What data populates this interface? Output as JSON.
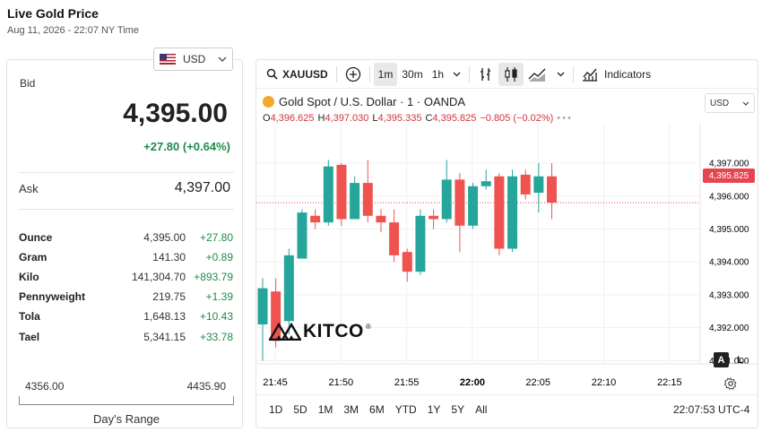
{
  "page": {
    "title": "Live Gold Price",
    "timestamp": "Aug 11, 2026 - 22:07 NY Time"
  },
  "currency": {
    "selected": "USD",
    "flag_icon": "us-flag-icon"
  },
  "bid": {
    "label": "Bid",
    "value": "4,395.00",
    "change": "+27.80 (+0.64%)"
  },
  "ask": {
    "label": "Ask",
    "value": "4,397.00"
  },
  "units": [
    {
      "name": "Ounce",
      "price": "4,395.00",
      "change": "+27.80"
    },
    {
      "name": "Gram",
      "price": "141.30",
      "change": "+0.89"
    },
    {
      "name": "Kilo",
      "price": "141,304.70",
      "change": "+893.79"
    },
    {
      "name": "Pennyweight",
      "price": "219.75",
      "change": "+1.39"
    },
    {
      "name": "Tola",
      "price": "1,648.13",
      "change": "+10.43"
    },
    {
      "name": "Tael",
      "price": "5,341.15",
      "change": "+33.78"
    }
  ],
  "day_range": {
    "low": "4356.00",
    "high": "4435.90",
    "label": "Day's Range"
  },
  "toolbar": {
    "symbol": "XAUUSD",
    "intervals": [
      "1m",
      "30m",
      "1h"
    ],
    "active_interval": "1m",
    "indicators_label": "Indicators"
  },
  "chart_header": {
    "title": "Gold Spot / U.S. Dollar · 1 · OANDA",
    "o_label": "O",
    "o_value": "4,396.625",
    "h_label": "H",
    "h_value": "4,397.030",
    "l_label": "L",
    "l_value": "4,395.335",
    "c_label": "C",
    "c_value": "4,395.825",
    "change": "−0.805 (−0.02%)"
  },
  "price_scale": {
    "currency": "USD",
    "last_price": "4,395.825"
  },
  "logo": {
    "text": "KITCO",
    "mark": "®"
  },
  "scale_toggle": {
    "log": "L",
    "auto": "A"
  },
  "range_buttons": [
    "1D",
    "5D",
    "1M",
    "3M",
    "6M",
    "YTD",
    "1Y",
    "5Y",
    "All"
  ],
  "clock": "22:07:53 UTC-4",
  "chart_data": {
    "type": "candlestick",
    "y_ticks": [
      "4,397.000",
      "4,396.000",
      "4,395.000",
      "4,394.000",
      "4,393.000",
      "4,392.000",
      "4,391.000"
    ],
    "x_ticks": [
      "21:45",
      "21:50",
      "21:55",
      "22:00",
      "22:05",
      "22:10",
      "22:15"
    ],
    "ylim": [
      4390.9,
      4398.2
    ],
    "colors": {
      "up": "#26a69a",
      "down": "#ef5350"
    },
    "candles": [
      {
        "o": 4392.1,
        "c": 4393.2,
        "h": 4393.5,
        "l": 4391.0
      },
      {
        "o": 4393.1,
        "c": 4391.6,
        "h": 4393.5,
        "l": 4391.4
      },
      {
        "o": 4392.2,
        "c": 4394.2,
        "h": 4394.4,
        "l": 4391.8
      },
      {
        "o": 4394.1,
        "c": 4395.5,
        "h": 4395.6,
        "l": 4394.1
      },
      {
        "o": 4395.4,
        "c": 4395.2,
        "h": 4395.6,
        "l": 4395.0
      },
      {
        "o": 4395.2,
        "c": 4396.9,
        "h": 4397.1,
        "l": 4395.1
      },
      {
        "o": 4396.95,
        "c": 4395.3,
        "h": 4397.0,
        "l": 4395.1
      },
      {
        "o": 4395.3,
        "c": 4396.4,
        "h": 4396.6,
        "l": 4395.3
      },
      {
        "o": 4396.4,
        "c": 4395.4,
        "h": 4397.1,
        "l": 4395.2
      },
      {
        "o": 4395.4,
        "c": 4395.2,
        "h": 4395.6,
        "l": 4394.9
      },
      {
        "o": 4395.2,
        "c": 4394.2,
        "h": 4395.6,
        "l": 4394.0
      },
      {
        "o": 4394.3,
        "c": 4393.7,
        "h": 4394.4,
        "l": 4393.4
      },
      {
        "o": 4393.7,
        "c": 4395.4,
        "h": 4395.6,
        "l": 4393.6
      },
      {
        "o": 4395.4,
        "c": 4395.3,
        "h": 4395.6,
        "l": 4395.0
      },
      {
        "o": 4395.3,
        "c": 4396.5,
        "h": 4397.1,
        "l": 4395.2
      },
      {
        "o": 4396.5,
        "c": 4395.1,
        "h": 4396.7,
        "l": 4394.3
      },
      {
        "o": 4395.1,
        "c": 4396.3,
        "h": 4396.4,
        "l": 4395.0
      },
      {
        "o": 4396.3,
        "c": 4396.45,
        "h": 4396.8,
        "l": 4396.2
      },
      {
        "o": 4396.6,
        "c": 4394.4,
        "h": 4396.7,
        "l": 4394.2
      },
      {
        "o": 4394.4,
        "c": 4396.6,
        "h": 4396.8,
        "l": 4394.3
      },
      {
        "o": 4396.65,
        "c": 4396.05,
        "h": 4396.8,
        "l": 4395.9
      },
      {
        "o": 4396.1,
        "c": 4396.6,
        "h": 4397.0,
        "l": 4395.5
      },
      {
        "o": 4396.6,
        "c": 4395.8,
        "h": 4397.0,
        "l": 4395.3
      }
    ]
  }
}
